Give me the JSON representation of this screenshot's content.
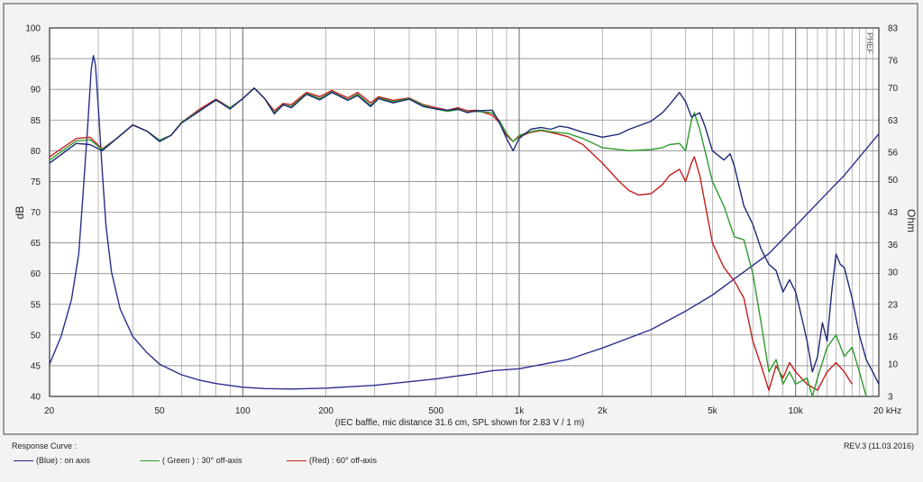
{
  "chart_data": {
    "type": "line",
    "xlabel": "(IEC baffle, mic distance 31.6 cm, SPL shown for 2.83 V / 1 m)",
    "ylabel_left": "dB",
    "ylabel_right": "Ohm",
    "x_scale": "log",
    "xlim": [
      20,
      20000
    ],
    "ylim_left": [
      40,
      100
    ],
    "ylim_right": [
      3,
      83
    ],
    "grid": true,
    "x_ticks": [
      {
        "v": 20,
        "label": "20"
      },
      {
        "v": 50,
        "label": "50"
      },
      {
        "v": 100,
        "label": "100"
      },
      {
        "v": 200,
        "label": "200"
      },
      {
        "v": 500,
        "label": "500"
      },
      {
        "v": 1000,
        "label": "1k"
      },
      {
        "v": 2000,
        "label": "2k"
      },
      {
        "v": 5000,
        "label": "5k"
      },
      {
        "v": 10000,
        "label": "10k"
      },
      {
        "v": 20000,
        "label": "20 kHz"
      }
    ],
    "y_ticks_left": [
      "100",
      "95",
      "90",
      "85",
      "80",
      "75",
      "70",
      "65",
      "60",
      "55",
      "50",
      "45",
      "40"
    ],
    "y_ticks_right": [
      "83",
      "76",
      "70",
      "63",
      "56",
      "50",
      "43",
      "36",
      "30",
      "23",
      "16",
      "10",
      "3"
    ],
    "right_top_label": "PHEF",
    "series": [
      {
        "name": "on axis",
        "color": "#1f2a78",
        "axis": "left",
        "points": [
          [
            20,
            78
          ],
          [
            25,
            81.2
          ],
          [
            28,
            81
          ],
          [
            31,
            80
          ],
          [
            35,
            82
          ],
          [
            40,
            84.2
          ],
          [
            45,
            83.2
          ],
          [
            50,
            81.5
          ],
          [
            55,
            82.5
          ],
          [
            60,
            84.5
          ],
          [
            70,
            86.5
          ],
          [
            80,
            88.3
          ],
          [
            90,
            86.8
          ],
          [
            100,
            88.5
          ],
          [
            110,
            90.2
          ],
          [
            120,
            88.5
          ],
          [
            130,
            86
          ],
          [
            140,
            87.5
          ],
          [
            150,
            87
          ],
          [
            170,
            89.2
          ],
          [
            190,
            88.3
          ],
          [
            210,
            89.5
          ],
          [
            240,
            88.2
          ],
          [
            260,
            89
          ],
          [
            290,
            87.2
          ],
          [
            310,
            88.5
          ],
          [
            350,
            87.8
          ],
          [
            400,
            88.4
          ],
          [
            450,
            87.2
          ],
          [
            500,
            86.8
          ],
          [
            550,
            86.6
          ],
          [
            600,
            86.8
          ],
          [
            650,
            86.2
          ],
          [
            700,
            86.5
          ],
          [
            800,
            86.6
          ],
          [
            850,
            84.5
          ],
          [
            900,
            82
          ],
          [
            950,
            80
          ],
          [
            1000,
            82
          ],
          [
            1100,
            83.5
          ],
          [
            1200,
            83.8
          ],
          [
            1300,
            83.5
          ],
          [
            1400,
            84
          ],
          [
            1500,
            83.8
          ],
          [
            1700,
            83
          ],
          [
            2000,
            82.2
          ],
          [
            2300,
            82.7
          ],
          [
            2500,
            83.5
          ],
          [
            3000,
            84.8
          ],
          [
            3300,
            86.2
          ],
          [
            3500,
            87.5
          ],
          [
            3800,
            89.5
          ],
          [
            4000,
            88
          ],
          [
            4200,
            85.5
          ],
          [
            4500,
            86.2
          ],
          [
            4700,
            84
          ],
          [
            5000,
            80
          ],
          [
            5500,
            78.5
          ],
          [
            5800,
            79.5
          ],
          [
            6000,
            77.5
          ],
          [
            6500,
            71
          ],
          [
            7000,
            68
          ],
          [
            7500,
            64
          ],
          [
            8000,
            61.5
          ],
          [
            8500,
            60.5
          ],
          [
            9000,
            57
          ],
          [
            9500,
            59
          ],
          [
            10000,
            57
          ],
          [
            10500,
            53
          ],
          [
            11000,
            49
          ],
          [
            11500,
            44
          ],
          [
            12000,
            46.5
          ],
          [
            12500,
            52
          ],
          [
            13000,
            49
          ],
          [
            13500,
            57
          ],
          [
            14000,
            63.2
          ],
          [
            14500,
            61.5
          ],
          [
            15000,
            61
          ],
          [
            16000,
            56
          ],
          [
            17000,
            50
          ],
          [
            18000,
            46
          ],
          [
            19000,
            44
          ],
          [
            20000,
            42
          ]
        ]
      },
      {
        "name": "30° off-axis",
        "color": "#2f9a2f",
        "axis": "left",
        "points": [
          [
            20,
            78.5
          ],
          [
            25,
            81.6
          ],
          [
            28,
            81.8
          ],
          [
            31,
            80.2
          ],
          [
            35,
            82
          ],
          [
            40,
            84.2
          ],
          [
            45,
            83.2
          ],
          [
            50,
            81.7
          ],
          [
            55,
            82.5
          ],
          [
            60,
            84.6
          ],
          [
            70,
            86.6
          ],
          [
            80,
            88.2
          ],
          [
            90,
            87
          ],
          [
            100,
            88.5
          ],
          [
            110,
            90.2
          ],
          [
            120,
            88.5
          ],
          [
            130,
            86.2
          ],
          [
            140,
            87.5
          ],
          [
            150,
            87.2
          ],
          [
            170,
            89.3
          ],
          [
            190,
            88.5
          ],
          [
            210,
            89.6
          ],
          [
            240,
            88.3
          ],
          [
            260,
            89.2
          ],
          [
            290,
            87.4
          ],
          [
            310,
            88.6
          ],
          [
            350,
            88
          ],
          [
            400,
            88.5
          ],
          [
            450,
            87.4
          ],
          [
            500,
            86.8
          ],
          [
            550,
            86.4
          ],
          [
            600,
            86.7
          ],
          [
            650,
            86.3
          ],
          [
            700,
            86.4
          ],
          [
            800,
            86.2
          ],
          [
            850,
            84.8
          ],
          [
            900,
            82.8
          ],
          [
            950,
            81.5
          ],
          [
            1000,
            82.5
          ],
          [
            1100,
            83.1
          ],
          [
            1200,
            83.4
          ],
          [
            1300,
            83.1
          ],
          [
            1500,
            82.8
          ],
          [
            1700,
            82
          ],
          [
            2000,
            80.5
          ],
          [
            2500,
            80
          ],
          [
            3000,
            80.2
          ],
          [
            3300,
            80.5
          ],
          [
            3500,
            81
          ],
          [
            3800,
            81.2
          ],
          [
            4000,
            80
          ],
          [
            4200,
            85
          ],
          [
            4300,
            86.2
          ],
          [
            4500,
            83.5
          ],
          [
            5000,
            75
          ],
          [
            5500,
            71
          ],
          [
            6000,
            66
          ],
          [
            6500,
            65.5
          ],
          [
            7000,
            60
          ],
          [
            7500,
            52
          ],
          [
            8000,
            44
          ],
          [
            8500,
            46
          ],
          [
            9000,
            42
          ],
          [
            9500,
            44
          ],
          [
            10000,
            42
          ],
          [
            11000,
            43
          ],
          [
            11500,
            40
          ],
          [
            12000,
            43
          ],
          [
            13000,
            48
          ],
          [
            14000,
            50
          ],
          [
            15000,
            46.5
          ],
          [
            16000,
            48
          ],
          [
            17000,
            44
          ],
          [
            18000,
            40
          ]
        ]
      },
      {
        "name": "60° off-axis",
        "color": "#c41e1e",
        "axis": "left",
        "points": [
          [
            20,
            79
          ],
          [
            25,
            82
          ],
          [
            28,
            82.2
          ],
          [
            31,
            80.3
          ],
          [
            35,
            82
          ],
          [
            40,
            84.2
          ],
          [
            45,
            83.2
          ],
          [
            50,
            81.7
          ],
          [
            55,
            82.5
          ],
          [
            60,
            84.6
          ],
          [
            70,
            86.8
          ],
          [
            80,
            88.4
          ],
          [
            90,
            87
          ],
          [
            100,
            88.5
          ],
          [
            110,
            90.2
          ],
          [
            120,
            88.5
          ],
          [
            130,
            86.5
          ],
          [
            140,
            87.7
          ],
          [
            150,
            87.5
          ],
          [
            170,
            89.5
          ],
          [
            190,
            88.8
          ],
          [
            210,
            89.8
          ],
          [
            240,
            88.6
          ],
          [
            260,
            89.5
          ],
          [
            290,
            87.8
          ],
          [
            310,
            88.8
          ],
          [
            350,
            88.2
          ],
          [
            400,
            88.6
          ],
          [
            450,
            87.5
          ],
          [
            500,
            87
          ],
          [
            550,
            86.6
          ],
          [
            600,
            87
          ],
          [
            650,
            86.5
          ],
          [
            700,
            86.6
          ],
          [
            800,
            85.8
          ],
          [
            850,
            84.5
          ],
          [
            900,
            82.5
          ],
          [
            950,
            81.5
          ],
          [
            1000,
            82.3
          ],
          [
            1100,
            83
          ],
          [
            1200,
            83.3
          ],
          [
            1300,
            83
          ],
          [
            1500,
            82.3
          ],
          [
            1700,
            81
          ],
          [
            2000,
            78
          ],
          [
            2300,
            75
          ],
          [
            2500,
            73.5
          ],
          [
            2700,
            72.8
          ],
          [
            3000,
            73
          ],
          [
            3300,
            74.5
          ],
          [
            3500,
            76
          ],
          [
            3800,
            77
          ],
          [
            4000,
            75
          ],
          [
            4200,
            78
          ],
          [
            4300,
            79
          ],
          [
            4500,
            76
          ],
          [
            5000,
            65
          ],
          [
            5500,
            61
          ],
          [
            6000,
            58.8
          ],
          [
            6500,
            56
          ],
          [
            7000,
            49
          ],
          [
            7500,
            45
          ],
          [
            8000,
            41
          ],
          [
            8500,
            45
          ],
          [
            9000,
            43
          ],
          [
            9500,
            45.5
          ],
          [
            10000,
            44
          ],
          [
            11000,
            42
          ],
          [
            12000,
            41
          ],
          [
            13000,
            44
          ],
          [
            14000,
            45.5
          ],
          [
            15000,
            44
          ],
          [
            16000,
            42
          ]
        ]
      },
      {
        "name": "impedance",
        "color": "#2a2f8c",
        "axis": "right",
        "points": [
          [
            20,
            10
          ],
          [
            22,
            16
          ],
          [
            24,
            24
          ],
          [
            25.5,
            34
          ],
          [
            26.5,
            48
          ],
          [
            27.5,
            62
          ],
          [
            28.3,
            74
          ],
          [
            28.8,
            77
          ],
          [
            29.3,
            75
          ],
          [
            30,
            66
          ],
          [
            31,
            52
          ],
          [
            32,
            40
          ],
          [
            33.5,
            30
          ],
          [
            36,
            22
          ],
          [
            40,
            16
          ],
          [
            45,
            12.5
          ],
          [
            50,
            10
          ],
          [
            60,
            7.7
          ],
          [
            70,
            6.5
          ],
          [
            80,
            5.8
          ],
          [
            100,
            5
          ],
          [
            120,
            4.7
          ],
          [
            150,
            4.6
          ],
          [
            200,
            4.8
          ],
          [
            300,
            5.4
          ],
          [
            500,
            6.8
          ],
          [
            700,
            8
          ],
          [
            800,
            8.6
          ],
          [
            1000,
            9
          ],
          [
            1500,
            11
          ],
          [
            2000,
            13.5
          ],
          [
            3000,
            17.5
          ],
          [
            4000,
            21.5
          ],
          [
            5000,
            25
          ],
          [
            6000,
            28.5
          ],
          [
            8000,
            34
          ],
          [
            10000,
            40
          ],
          [
            12000,
            45
          ],
          [
            15000,
            51
          ],
          [
            20000,
            60
          ]
        ]
      }
    ]
  },
  "legend": {
    "title": "Response Curve :",
    "items": [
      {
        "label": "(Blue)  : on axis",
        "color": "#1f2a78"
      },
      {
        "label": "( Green ) : 30° off-axis",
        "color": "#2f9a2f"
      },
      {
        "label": "(Red) : 60° off-axis",
        "color": "#c41e1e"
      }
    ],
    "revision": "REV.3 (11.03.2016)"
  }
}
